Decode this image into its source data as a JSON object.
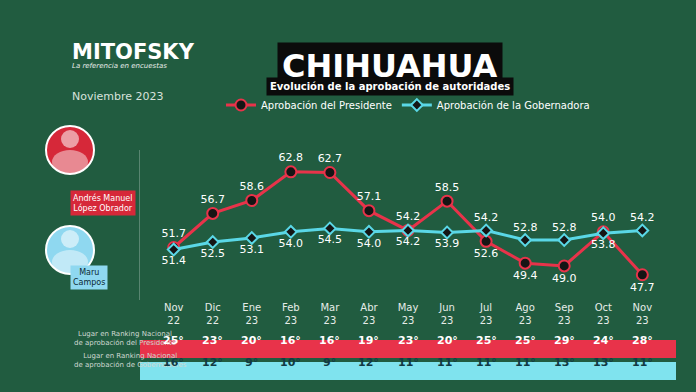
{
  "chart_data": {
    "type": "line",
    "title": "CHIHUAHUA",
    "subtitle": "Evolución de la aprobación de autoridades",
    "categories": [
      "Nov 22",
      "Dic 22",
      "Ene 23",
      "Feb 23",
      "Mar 23",
      "Abr 23",
      "May 23",
      "Jun 23",
      "Jul 23",
      "Ago 23",
      "Sep 23",
      "Oct 23",
      "Nov 23"
    ],
    "series": [
      {
        "name": "Aprobación del Presidente",
        "color": "#e8334a",
        "marker": "circle",
        "values": [
          51.7,
          56.7,
          58.6,
          62.8,
          62.7,
          57.1,
          54.2,
          58.5,
          52.6,
          49.4,
          49.0,
          54.0,
          47.7
        ],
        "value_labels": [
          "51.7",
          "56.7",
          "58.6",
          "62.8",
          "62.7",
          "57.1",
          "54.2",
          "58.5",
          "52.6",
          "49.4",
          "49.0",
          "54.0",
          "47.7"
        ]
      },
      {
        "name": "Aprobación de la Gobernadora",
        "color": "#5ad7e6",
        "marker": "diamond",
        "values": [
          51.4,
          52.5,
          53.1,
          54.0,
          54.5,
          54.0,
          54.2,
          53.9,
          54.2,
          52.8,
          52.8,
          53.8,
          54.2
        ],
        "value_labels": [
          "51.4",
          "52.5",
          "53.1",
          "54.0",
          "54.5",
          "54.0",
          "54.2",
          "53.9",
          "54.2",
          "52.8",
          "52.8",
          "53.8",
          "54.2"
        ]
      }
    ],
    "ylim": [
      44,
      66
    ],
    "tick_labels": "x",
    "grid": false,
    "data_labels": true,
    "legend": "top",
    "rankings": [
      {
        "label_lines": [
          "Lugar en Ranking Nacional",
          "de aprobación del Presidente"
        ],
        "color": "#e8334a",
        "values": [
          "25°",
          "23°",
          "20°",
          "16°",
          "16°",
          "19°",
          "23°",
          "20°",
          "25°",
          "25°",
          "29°",
          "24°",
          "28°"
        ]
      },
      {
        "label_lines": [
          "Lugar en Ranking Nacional",
          "de aprobación de Gobernadores"
        ],
        "color": "#7fe3ee",
        "values": [
          "16°",
          "12°",
          "9°",
          "10°",
          "9°",
          "12°",
          "11°",
          "11°",
          "11°",
          "11°",
          "13°",
          "13°",
          "11°"
        ]
      }
    ]
  },
  "header": {
    "brand": "MITOFSKY",
    "tagline": "La referencia en encuestas",
    "date": "Noviembre 2023"
  },
  "people": [
    {
      "name_lines": [
        "Andrés Manuel",
        "López Obrador"
      ],
      "color": "#d62839"
    },
    {
      "name_lines": [
        "Maru",
        "Campos"
      ],
      "color": "#8fd8f0"
    }
  ]
}
